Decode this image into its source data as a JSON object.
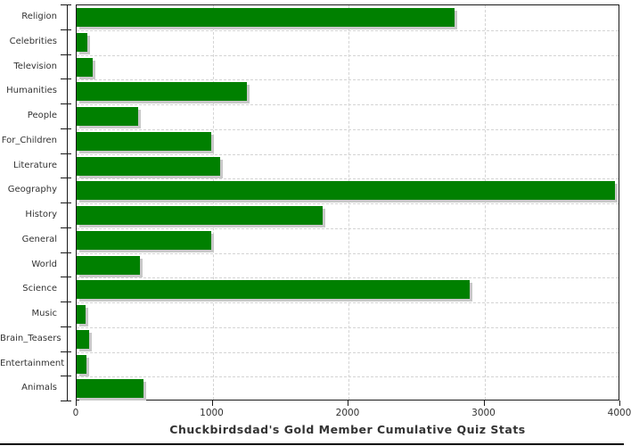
{
  "chart_data": {
    "type": "bar",
    "orientation": "horizontal",
    "title": "Chuckbirdsdad's Gold Member Cumulative Quiz Stats",
    "categories": [
      "Religion",
      "Celebrities",
      "Television",
      "Humanities",
      "People",
      "For_Children",
      "Literature",
      "Geography",
      "History",
      "General",
      "World",
      "Science",
      "Music",
      "Brain_Teasers",
      "Entertainment",
      "Animals"
    ],
    "values": [
      2780,
      80,
      115,
      1250,
      450,
      990,
      1055,
      3960,
      1810,
      990,
      465,
      2890,
      65,
      90,
      75,
      490
    ],
    "xlabel": "",
    "ylabel": "",
    "xlim": [
      0,
      4000
    ],
    "x_ticks": [
      0,
      1000,
      2000,
      3000,
      4000
    ],
    "x_tick_labels": [
      "0",
      "1000",
      "2000",
      "3000",
      "4000"
    ],
    "grid": "dashed",
    "legend": "none",
    "colors": {
      "bar": "#008000",
      "bar_shadow": "#c8c8c8",
      "grid_line": "#d4d4d4",
      "axis": "#1a1a1a",
      "text": "#333333",
      "background": "#ffffff"
    }
  }
}
